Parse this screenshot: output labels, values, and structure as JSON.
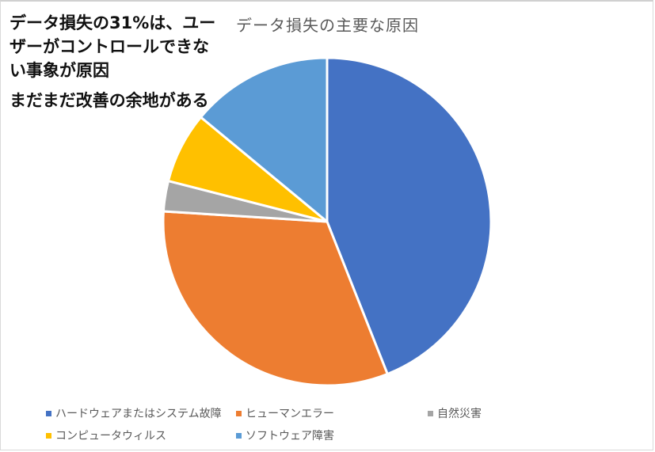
{
  "annotation": {
    "line1": "データ損失の31%は、ユーザーがコントロールできない事象が原因",
    "line2": "まだまだ改善の余地がある"
  },
  "chart_data": {
    "type": "pie",
    "title": "データ損失の主要な原因",
    "categories": [
      "ハードウェアまたはシステム故障",
      "ヒューマンエラー",
      "自然災害",
      "コンピュータウィルス",
      "ソフトウェア障害"
    ],
    "values": [
      44,
      32,
      3,
      7,
      14
    ],
    "unit": "%",
    "colors": [
      "#4472C4",
      "#ED7D31",
      "#A5A5A5",
      "#FFC000",
      "#5B9BD5"
    ],
    "start_angle": "12 o'clock, clockwise",
    "legend_position": "bottom",
    "data_labels": false
  },
  "legend": [
    {
      "label": "ハードウェアまたはシステム故障",
      "color": "#4472C4"
    },
    {
      "label": "ヒューマンエラー",
      "color": "#ED7D31"
    },
    {
      "label": "自然災害",
      "color": "#A5A5A5"
    },
    {
      "label": "コンピュータウィルス",
      "color": "#FFC000"
    },
    {
      "label": "ソフトウェア障害",
      "color": "#5B9BD5"
    }
  ]
}
